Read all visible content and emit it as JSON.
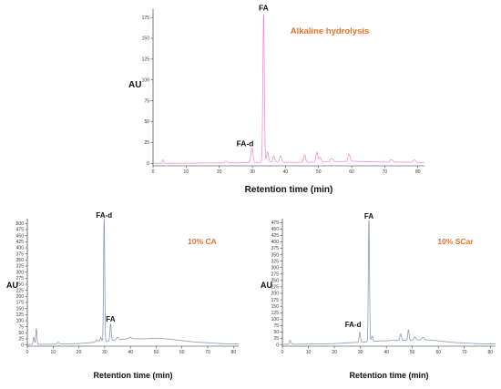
{
  "chart_data": [
    {
      "type": "line",
      "name": "top",
      "title": "Alkaline hydrolysis",
      "xlabel": "Retention time (min)",
      "ylabel": "AU",
      "xlim": [
        0,
        82
      ],
      "ylim": [
        -3,
        185
      ],
      "xticks": [
        0,
        10,
        20,
        30,
        40,
        50,
        60,
        70,
        80
      ],
      "yticks": [
        0,
        25,
        50,
        75,
        100,
        125,
        150,
        175
      ],
      "color": "#f090d8",
      "grid": false,
      "annotations": [
        {
          "text": "FA",
          "x": 33.4,
          "y": 180
        },
        {
          "text": "FA-d",
          "x": 30.0,
          "y": 17
        }
      ],
      "series": [
        {
          "baseline": [
            [
              0,
              0
            ],
            [
              5,
              0
            ],
            [
              10,
              0.2
            ],
            [
              15,
              0.3
            ],
            [
              20,
              0.5
            ],
            [
              25,
              0.6
            ],
            [
              30,
              0.8
            ],
            [
              35,
              1.5
            ],
            [
              40,
              1.2
            ],
            [
              45,
              1
            ],
            [
              50,
              1.3
            ],
            [
              55,
              2
            ],
            [
              60,
              2.5
            ],
            [
              65,
              2
            ],
            [
              70,
              1.5
            ],
            [
              75,
              1.5
            ],
            [
              80,
              1
            ],
            [
              82,
              1
            ]
          ],
          "peaks": [
            [
              3.0,
              4,
              0.2
            ],
            [
              22,
              2,
              0.3
            ],
            [
              29.9,
              18,
              0.3
            ],
            [
              33.4,
              180,
              0.22
            ],
            [
              34.6,
              12,
              0.3
            ],
            [
              36.5,
              7,
              0.3
            ],
            [
              38.5,
              8,
              0.3
            ],
            [
              45.8,
              9,
              0.3
            ],
            [
              49.5,
              12,
              0.3
            ],
            [
              50.5,
              6,
              0.3
            ],
            [
              54,
              4,
              0.4
            ],
            [
              59.2,
              9,
              0.3
            ],
            [
              72,
              3,
              0.4
            ],
            [
              79,
              3,
              0.4
            ]
          ]
        }
      ]
    },
    {
      "type": "line",
      "name": "bottom-left",
      "title": "10% CA",
      "xlabel": "Retention time (min)",
      "ylabel": "AU",
      "xlim": [
        0,
        82
      ],
      "ylim": [
        -5,
        520
      ],
      "xticks": [
        0,
        10,
        20,
        30,
        40,
        50,
        60,
        70,
        80
      ],
      "yticks": [
        0,
        25,
        50,
        75,
        100,
        125,
        150,
        175,
        200,
        225,
        250,
        275,
        300,
        325,
        350,
        375,
        400,
        425,
        450,
        475,
        500
      ],
      "color": "#8b9bb8",
      "grid": false,
      "annotations": [
        {
          "text": "FA-d",
          "x": 29.8,
          "y": 512
        },
        {
          "text": "FA",
          "x": 32.3,
          "y": 85
        }
      ],
      "series": [
        {
          "baseline": [
            [
              0,
              2
            ],
            [
              10,
              3
            ],
            [
              20,
              6
            ],
            [
              25,
              10
            ],
            [
              30,
              14
            ],
            [
              35,
              22
            ],
            [
              40,
              26
            ],
            [
              45,
              25
            ],
            [
              50,
              28
            ],
            [
              55,
              24
            ],
            [
              60,
              18
            ],
            [
              65,
              12
            ],
            [
              70,
              9
            ],
            [
              75,
              6
            ],
            [
              80,
              4
            ],
            [
              82,
              4
            ]
          ],
          "peaks": [
            [
              2.5,
              30,
              0.25
            ],
            [
              3.5,
              65,
              0.22
            ],
            [
              12,
              8,
              0.3
            ],
            [
              27,
              10,
              0.4
            ],
            [
              28.5,
              18,
              0.3
            ],
            [
              29.8,
              512,
              0.22
            ],
            [
              32.3,
              70,
              0.25
            ],
            [
              35,
              10,
              0.4
            ],
            [
              40,
              6,
              0.4
            ]
          ]
        }
      ]
    },
    {
      "type": "line",
      "name": "bottom-right",
      "title": "10% SCar",
      "xlabel": "Retention time (min)",
      "ylabel": "AU",
      "xlim": [
        0,
        82
      ],
      "ylim": [
        -5,
        490
      ],
      "xticks": [
        0,
        10,
        20,
        30,
        40,
        50,
        60,
        70,
        80
      ],
      "yticks": [
        0,
        25,
        50,
        75,
        100,
        125,
        150,
        175,
        200,
        225,
        250,
        275,
        300,
        325,
        350,
        375,
        400,
        425,
        450,
        475
      ],
      "color": "#8b9bb8",
      "grid": false,
      "annotations": [
        {
          "text": "FA",
          "x": 33.3,
          "y": 480
        },
        {
          "text": "FA-d",
          "x": 30.0,
          "y": 58
        }
      ],
      "series": [
        {
          "baseline": [
            [
              0,
              2
            ],
            [
              10,
              3
            ],
            [
              20,
              5
            ],
            [
              25,
              8
            ],
            [
              30,
              10
            ],
            [
              35,
              14
            ],
            [
              40,
              16
            ],
            [
              45,
              18
            ],
            [
              50,
              18
            ],
            [
              55,
              20
            ],
            [
              60,
              16
            ],
            [
              65,
              10
            ],
            [
              70,
              7
            ],
            [
              75,
              5
            ],
            [
              80,
              4
            ],
            [
              82,
              4
            ]
          ],
          "peaks": [
            [
              3,
              15,
              0.3
            ],
            [
              29.8,
              40,
              0.25
            ],
            [
              33.3,
              480,
              0.22
            ],
            [
              34.5,
              20,
              0.3
            ],
            [
              45.5,
              25,
              0.3
            ],
            [
              48.5,
              40,
              0.25
            ],
            [
              51,
              12,
              0.4
            ],
            [
              54,
              10,
              0.4
            ]
          ]
        }
      ]
    }
  ]
}
